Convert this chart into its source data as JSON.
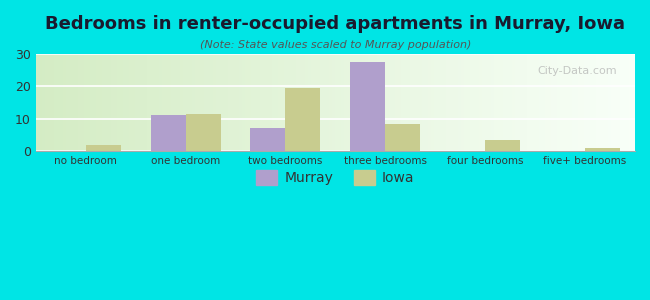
{
  "title": "Bedrooms in renter-occupied apartments in Murray, Iowa",
  "subtitle": "(Note: State values scaled to Murray population)",
  "categories": [
    "no bedroom",
    "one bedroom",
    "two bedrooms",
    "three bedrooms",
    "four bedrooms",
    "five+ bedrooms"
  ],
  "murray_values": [
    0,
    11,
    7,
    27.5,
    0,
    0
  ],
  "iowa_values": [
    2,
    11.5,
    19.5,
    8.5,
    3.5,
    0.8
  ],
  "murray_color": "#b09fcc",
  "iowa_color": "#c8cc8f",
  "background_color": "#00e5e5",
  "plot_bg_color_start": "#d4ecc4",
  "plot_bg_color_end": "#f8fff8",
  "ylim": [
    0,
    30
  ],
  "yticks": [
    0,
    10,
    20,
    30
  ],
  "bar_width": 0.35,
  "legend_murray": "Murray",
  "legend_iowa": "Iowa",
  "watermark": "City-Data.com"
}
